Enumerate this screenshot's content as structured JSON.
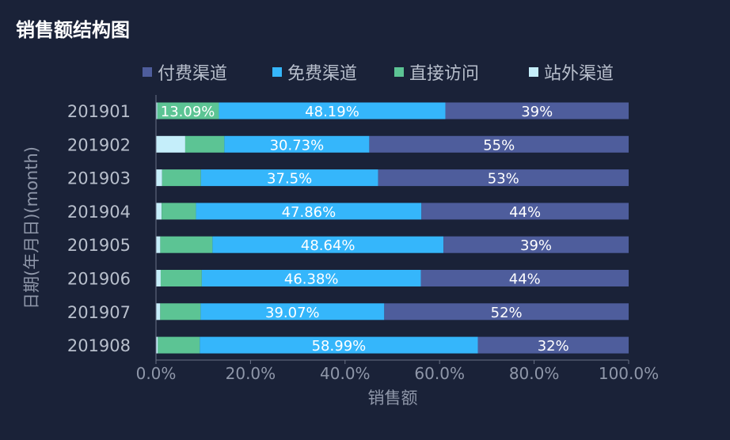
{
  "title": "销售额结构图",
  "chart_data": {
    "type": "bar",
    "orientation": "horizontal",
    "stacked": "percent",
    "title": "销售额结构图",
    "xlabel": "销售额",
    "ylabel": "日期(年月日)(month)",
    "xlim": [
      0,
      100
    ],
    "x_ticks": [
      "0.0%",
      "20.0%",
      "40.0%",
      "60.0%",
      "80.0%",
      "100.0%"
    ],
    "legend_position": "top",
    "grid": false,
    "categories": [
      "201901",
      "201902",
      "201903",
      "201904",
      "201905",
      "201906",
      "201907",
      "201908"
    ],
    "series": [
      {
        "name": "站外渠道",
        "color": "#c5eefa",
        "values": [
          0.3,
          6.2,
          1.3,
          1.2,
          0.9,
          1.0,
          0.9,
          0.4
        ],
        "labels": [
          "",
          "",
          "",
          "",
          "",
          "",
          "",
          ""
        ]
      },
      {
        "name": "直接访问",
        "color": "#5cc494",
        "values": [
          13.09,
          8.3,
          8.2,
          7.3,
          11.0,
          8.7,
          8.6,
          8.9
        ],
        "labels": [
          "13.09%",
          "",
          "",
          "",
          "",
          "",
          "",
          ""
        ]
      },
      {
        "name": "免费渠道",
        "color": "#35b6fb",
        "values": [
          48.19,
          30.73,
          37.5,
          47.86,
          48.64,
          46.38,
          39.07,
          58.99
        ],
        "labels": [
          "48.19%",
          "30.73%",
          "37.5%",
          "47.86%",
          "48.64%",
          "46.38%",
          "39.07%",
          "58.99%"
        ]
      },
      {
        "name": "付费渠道",
        "color": "#4e5d9c",
        "values": [
          39,
          55,
          53,
          44,
          39,
          44,
          52,
          32
        ],
        "labels": [
          "39%",
          "55%",
          "53%",
          "44%",
          "39%",
          "44%",
          "52%",
          "32%"
        ]
      }
    ],
    "legend_order": [
      "付费渠道",
      "免费渠道",
      "直接访问",
      "站外渠道"
    ]
  }
}
